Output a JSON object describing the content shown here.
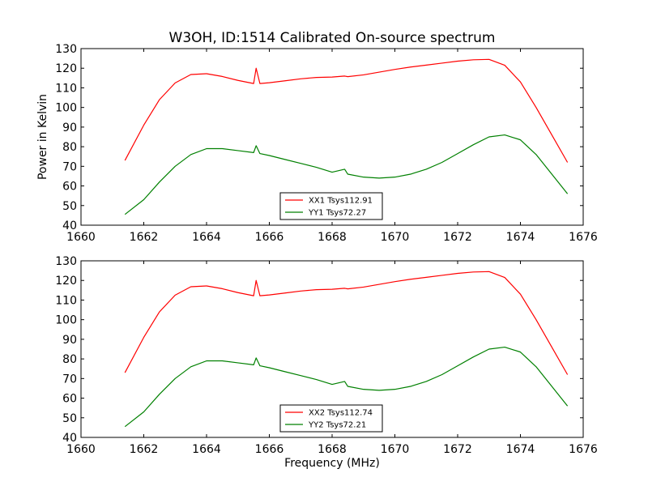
{
  "chart_data": [
    {
      "type": "line",
      "title": "W3OH, ID:1514 Calibrated On-source spectrum",
      "xlabel": "",
      "ylabel": "Power in Kelvin",
      "xlim": [
        1660,
        1676
      ],
      "ylim": [
        40,
        130
      ],
      "xticks": [
        "1660",
        "1662",
        "1664",
        "1666",
        "1668",
        "1670",
        "1672",
        "1674",
        "1676"
      ],
      "yticks": [
        "40",
        "50",
        "60",
        "70",
        "80",
        "90",
        "100",
        "110",
        "120",
        "130"
      ],
      "grid": false,
      "legend": "lower-center",
      "series": [
        {
          "name": "XX1 Tsys112.91",
          "color": "#ff0000",
          "x": [
            1661.4,
            1662.0,
            1662.5,
            1663.0,
            1663.5,
            1664.0,
            1664.5,
            1665.0,
            1665.5,
            1665.58,
            1665.7,
            1666.0,
            1666.5,
            1667.0,
            1667.5,
            1668.0,
            1668.4,
            1668.5,
            1669.0,
            1669.5,
            1670.0,
            1670.5,
            1671.0,
            1671.5,
            1672.0,
            1672.5,
            1673.0,
            1673.5,
            1674.0,
            1674.5,
            1675.0,
            1675.5
          ],
          "y": [
            73,
            91,
            104,
            112.5,
            116.8,
            117.2,
            115.8,
            113.8,
            112.2,
            120,
            112.2,
            112.6,
            113.6,
            114.6,
            115.3,
            115.5,
            116,
            115.7,
            116.6,
            118,
            119.4,
            120.6,
            121.6,
            122.6,
            123.6,
            124.3,
            124.5,
            121.5,
            113,
            100,
            86,
            72
          ]
        },
        {
          "name": "YY1 Tsys72.27",
          "color": "#008000",
          "x": [
            1661.4,
            1662.0,
            1662.5,
            1663.0,
            1663.5,
            1664.0,
            1664.5,
            1665.0,
            1665.5,
            1665.58,
            1665.7,
            1666.0,
            1666.5,
            1667.0,
            1667.5,
            1668.0,
            1668.4,
            1668.5,
            1669.0,
            1669.5,
            1670.0,
            1670.5,
            1671.0,
            1671.5,
            1672.0,
            1672.5,
            1673.0,
            1673.5,
            1674.0,
            1674.5,
            1675.0,
            1675.5
          ],
          "y": [
            45.5,
            53,
            62,
            70,
            76,
            79,
            79,
            78,
            77,
            80.5,
            76.5,
            75.5,
            73.5,
            71.5,
            69.5,
            67,
            68.5,
            66,
            64.5,
            64,
            64.5,
            66,
            68.5,
            72,
            76.5,
            81,
            85,
            86,
            83.5,
            76,
            66,
            56
          ]
        }
      ]
    },
    {
      "type": "line",
      "title": "",
      "xlabel": "Frequency (MHz)",
      "ylabel": "",
      "xlim": [
        1660,
        1676
      ],
      "ylim": [
        40,
        130
      ],
      "xticks": [
        "1660",
        "1662",
        "1664",
        "1666",
        "1668",
        "1670",
        "1672",
        "1674",
        "1676"
      ],
      "yticks": [
        "40",
        "50",
        "60",
        "70",
        "80",
        "90",
        "100",
        "110",
        "120",
        "130"
      ],
      "grid": false,
      "legend": "lower-center",
      "series": [
        {
          "name": "XX2 Tsys112.74",
          "color": "#ff0000",
          "x": [
            1661.4,
            1662.0,
            1662.5,
            1663.0,
            1663.5,
            1664.0,
            1664.5,
            1665.0,
            1665.5,
            1665.58,
            1665.7,
            1666.0,
            1666.5,
            1667.0,
            1667.5,
            1668.0,
            1668.4,
            1668.5,
            1669.0,
            1669.5,
            1670.0,
            1670.5,
            1671.0,
            1671.5,
            1672.0,
            1672.5,
            1673.0,
            1673.5,
            1674.0,
            1674.5,
            1675.0,
            1675.5
          ],
          "y": [
            73,
            91,
            104,
            112.5,
            116.8,
            117.2,
            115.8,
            113.8,
            112.2,
            120,
            112.2,
            112.6,
            113.6,
            114.6,
            115.3,
            115.5,
            116,
            115.7,
            116.6,
            118,
            119.4,
            120.6,
            121.6,
            122.6,
            123.6,
            124.3,
            124.5,
            121.5,
            113,
            100,
            86,
            72
          ]
        },
        {
          "name": "YY2 Tsys72.21",
          "color": "#008000",
          "x": [
            1661.4,
            1662.0,
            1662.5,
            1663.0,
            1663.5,
            1664.0,
            1664.5,
            1665.0,
            1665.5,
            1665.58,
            1665.7,
            1666.0,
            1666.5,
            1667.0,
            1667.5,
            1668.0,
            1668.4,
            1668.5,
            1669.0,
            1669.5,
            1670.0,
            1670.5,
            1671.0,
            1671.5,
            1672.0,
            1672.5,
            1673.0,
            1673.5,
            1674.0,
            1674.5,
            1675.0,
            1675.5
          ],
          "y": [
            45.5,
            53,
            62,
            70,
            76,
            79,
            79,
            78,
            77,
            80.5,
            76.5,
            75.5,
            73.5,
            71.5,
            69.5,
            67,
            68.5,
            66,
            64.5,
            64,
            64.5,
            66,
            68.5,
            72,
            76.5,
            81,
            85,
            86,
            83.5,
            76,
            66,
            56
          ]
        }
      ]
    }
  ]
}
